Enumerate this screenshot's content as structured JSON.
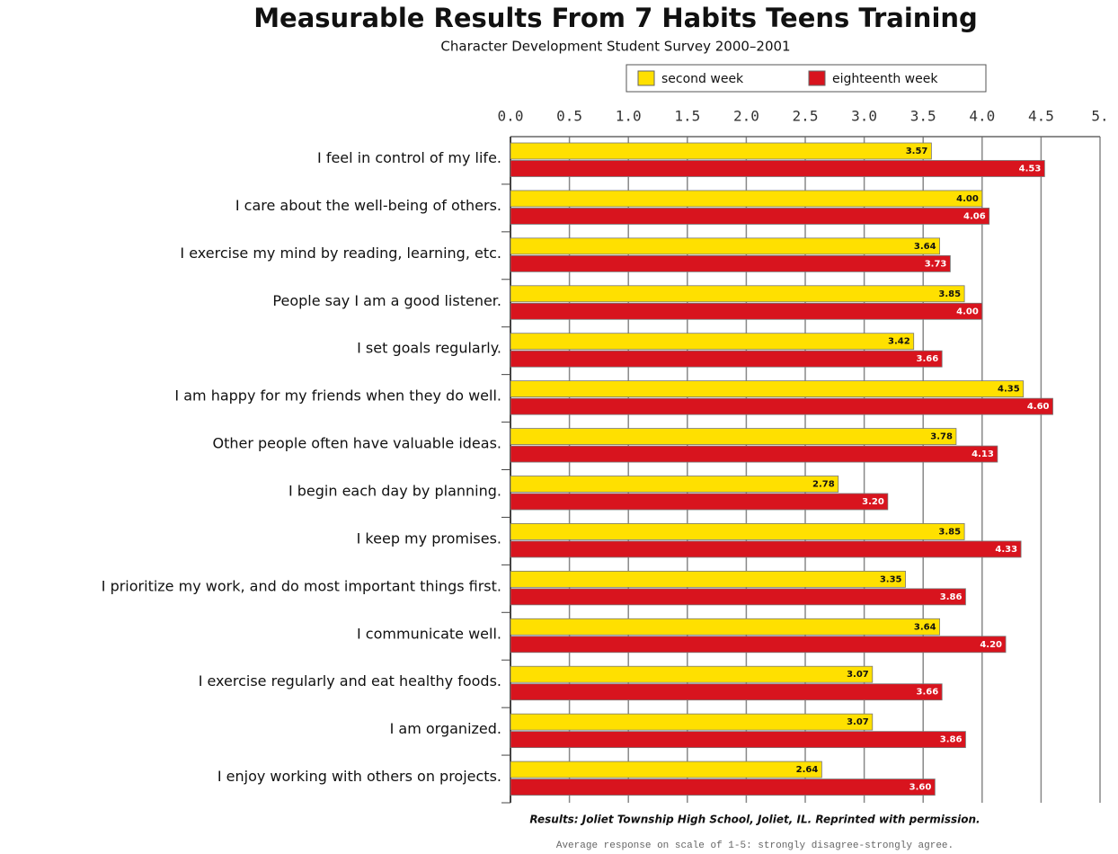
{
  "chart_data": {
    "type": "bar",
    "orientation": "horizontal",
    "title": "Measurable Results From 7 Habits Teens Training",
    "subtitle": "Character Development Student Survey 2000–2001",
    "categories": [
      "I feel in control of my life.",
      "I care about the well-being of others.",
      "I exercise my mind by reading, learning, etc.",
      "People say I am a good listener.",
      "I set goals regularly.",
      "I am happy for my friends when they do well.",
      "Other people often have valuable ideas.",
      "I begin each day by planning.",
      "I keep my promises.",
      "I prioritize my work, and do most important things first.",
      "I communicate well.",
      "I exercise regularly and eat healthy foods.",
      "I am organized.",
      "I enjoy working with others on projects."
    ],
    "series": [
      {
        "name": "second week",
        "color": "#ffe000",
        "values": [
          3.57,
          4.0,
          3.64,
          3.85,
          3.42,
          4.35,
          3.78,
          2.78,
          3.85,
          3.35,
          3.64,
          3.07,
          3.07,
          2.64
        ],
        "value_labels": [
          "3.57",
          "4.00",
          "3.64",
          "3.85",
          "3.42",
          "4.35",
          "3.78",
          "2.78",
          "3.85",
          "3.35",
          "3.64",
          "3.07",
          "3.07",
          "2.64"
        ]
      },
      {
        "name": "eighteenth week",
        "color": "#d8141e",
        "values": [
          4.53,
          4.06,
          3.73,
          4.0,
          3.66,
          4.6,
          4.13,
          3.2,
          4.33,
          3.86,
          4.2,
          3.66,
          3.86,
          3.6
        ],
        "value_labels": [
          "4.53",
          "4.06",
          "3.73",
          "4.00",
          "3.66",
          "4.60",
          "4.13",
          "3.20",
          "4.33",
          "3.86",
          "4.20",
          "3.66",
          "3.86",
          "3.60"
        ]
      }
    ],
    "xlim": [
      0,
      5
    ],
    "xticks": [
      {
        "value": 0,
        "label": "0.0"
      },
      {
        "value": 0.5,
        "label": "0.5"
      },
      {
        "value": 1,
        "label": "1.0"
      },
      {
        "value": 1.5,
        "label": "1.5"
      },
      {
        "value": 2,
        "label": "2.0"
      },
      {
        "value": 2.5,
        "label": "2.5"
      },
      {
        "value": 3,
        "label": "3.0"
      },
      {
        "value": 3.5,
        "label": "3.5"
      },
      {
        "value": 4,
        "label": "4.0"
      },
      {
        "value": 4.5,
        "label": "4.5"
      },
      {
        "value": 5,
        "label": "5."
      }
    ],
    "grid": true,
    "legend": "top",
    "notes": [
      "Results: Joliet Township High School, Joliet, IL. Reprinted with permission.",
      "Average response on scale of 1-5: strongly disagree-strongly agree."
    ]
  }
}
